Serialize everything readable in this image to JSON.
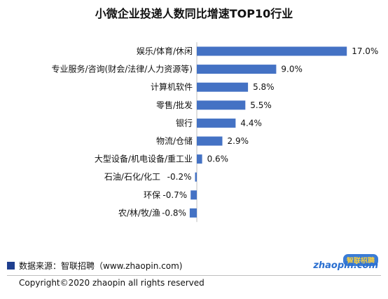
{
  "chart_data": {
    "type": "bar",
    "orientation": "horizontal",
    "title": "小微企业投递人数同比增速TOP10行业",
    "categories": [
      "娱乐/体育/休闲",
      "专业服务/咨询(财会/法律/人力资源等)",
      "计算机软件",
      "零售/批发",
      "银行",
      "物流/仓储",
      "大型设备/机电设备/重工业",
      "石油/石化/化工",
      "环保",
      "农/林/牧/渔"
    ],
    "values": [
      17.0,
      9.0,
      5.8,
      5.5,
      4.4,
      2.9,
      0.6,
      -0.2,
      -0.7,
      -0.8
    ],
    "value_labels": [
      "17.0%",
      "9.0%",
      "5.8%",
      "5.5%",
      "4.4%",
      "2.9%",
      "0.6%",
      "-0.2%",
      "-0.7%",
      "-0.8%"
    ],
    "xlim": [
      -1,
      17
    ],
    "grid": false,
    "bar_color": "#4472c4"
  },
  "footer": {
    "source": "数据来源：智联招聘（www.zhaopin.com)",
    "copyright": "Copyright©2020 zhaopin all rights reserved",
    "logo_cn": "智联招聘",
    "logo_en": "zhaopin.com"
  }
}
